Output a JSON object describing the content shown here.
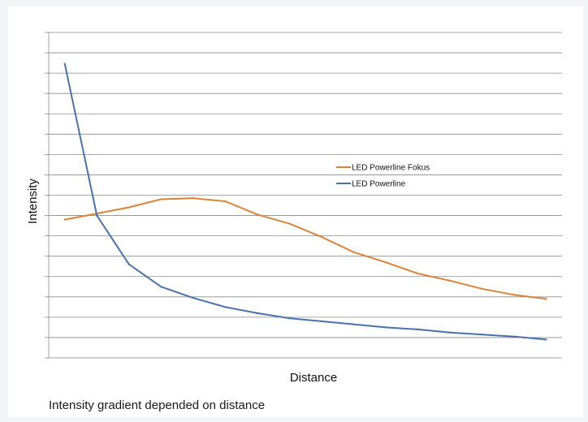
{
  "chart_data": {
    "type": "line",
    "title": "",
    "xlabel": "Distance",
    "ylabel": "Intensity",
    "x": [
      1,
      2,
      3,
      4,
      5,
      6,
      7,
      8,
      9,
      10,
      11,
      12,
      13,
      14,
      15,
      16
    ],
    "xlim": [
      0.5,
      16.5
    ],
    "ylim": [
      0,
      16
    ],
    "grid": true,
    "tick_labels": false,
    "legend_position": "right-middle",
    "series": [
      {
        "name": "LED Powerline Fokus",
        "color": "#d9843a",
        "values": [
          6.8,
          7.1,
          7.4,
          7.8,
          7.85,
          7.7,
          7.05,
          6.6,
          5.95,
          5.2,
          4.7,
          4.15,
          3.8,
          3.4,
          3.1,
          2.9
        ]
      },
      {
        "name": "LED Powerline",
        "color": "#4a72a8",
        "values": [
          14.45,
          7.0,
          4.6,
          3.5,
          2.95,
          2.5,
          2.2,
          1.95,
          1.8,
          1.65,
          1.5,
          1.4,
          1.25,
          1.15,
          1.05,
          0.9
        ]
      }
    ]
  },
  "caption": "Intensity gradient depended on distance"
}
